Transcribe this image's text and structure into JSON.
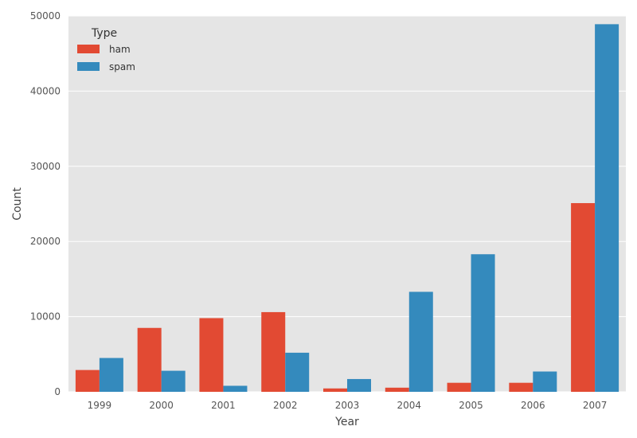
{
  "chart_data": {
    "type": "bar",
    "title": "",
    "xlabel": "Year",
    "ylabel": "Count",
    "ylim": [
      0,
      50000
    ],
    "yticks": [
      0,
      10000,
      20000,
      30000,
      40000,
      50000
    ],
    "ytick_labels": [
      "0",
      "10000",
      "20000",
      "30000",
      "40000",
      "50000"
    ],
    "categories": [
      "1999",
      "2000",
      "2001",
      "2002",
      "2003",
      "2004",
      "2005",
      "2006",
      "2007"
    ],
    "series": [
      {
        "name": "ham",
        "color": "#e24a33",
        "values": [
          2900,
          8500,
          9800,
          10600,
          450,
          550,
          1200,
          1200,
          25100
        ]
      },
      {
        "name": "spam",
        "color": "#348abd",
        "values": [
          4500,
          2800,
          800,
          5200,
          1700,
          13300,
          18300,
          2700,
          48900
        ]
      }
    ],
    "legend": {
      "title": "Type",
      "placement": "top-left"
    },
    "grid": true,
    "background": "#e5e5e5"
  }
}
